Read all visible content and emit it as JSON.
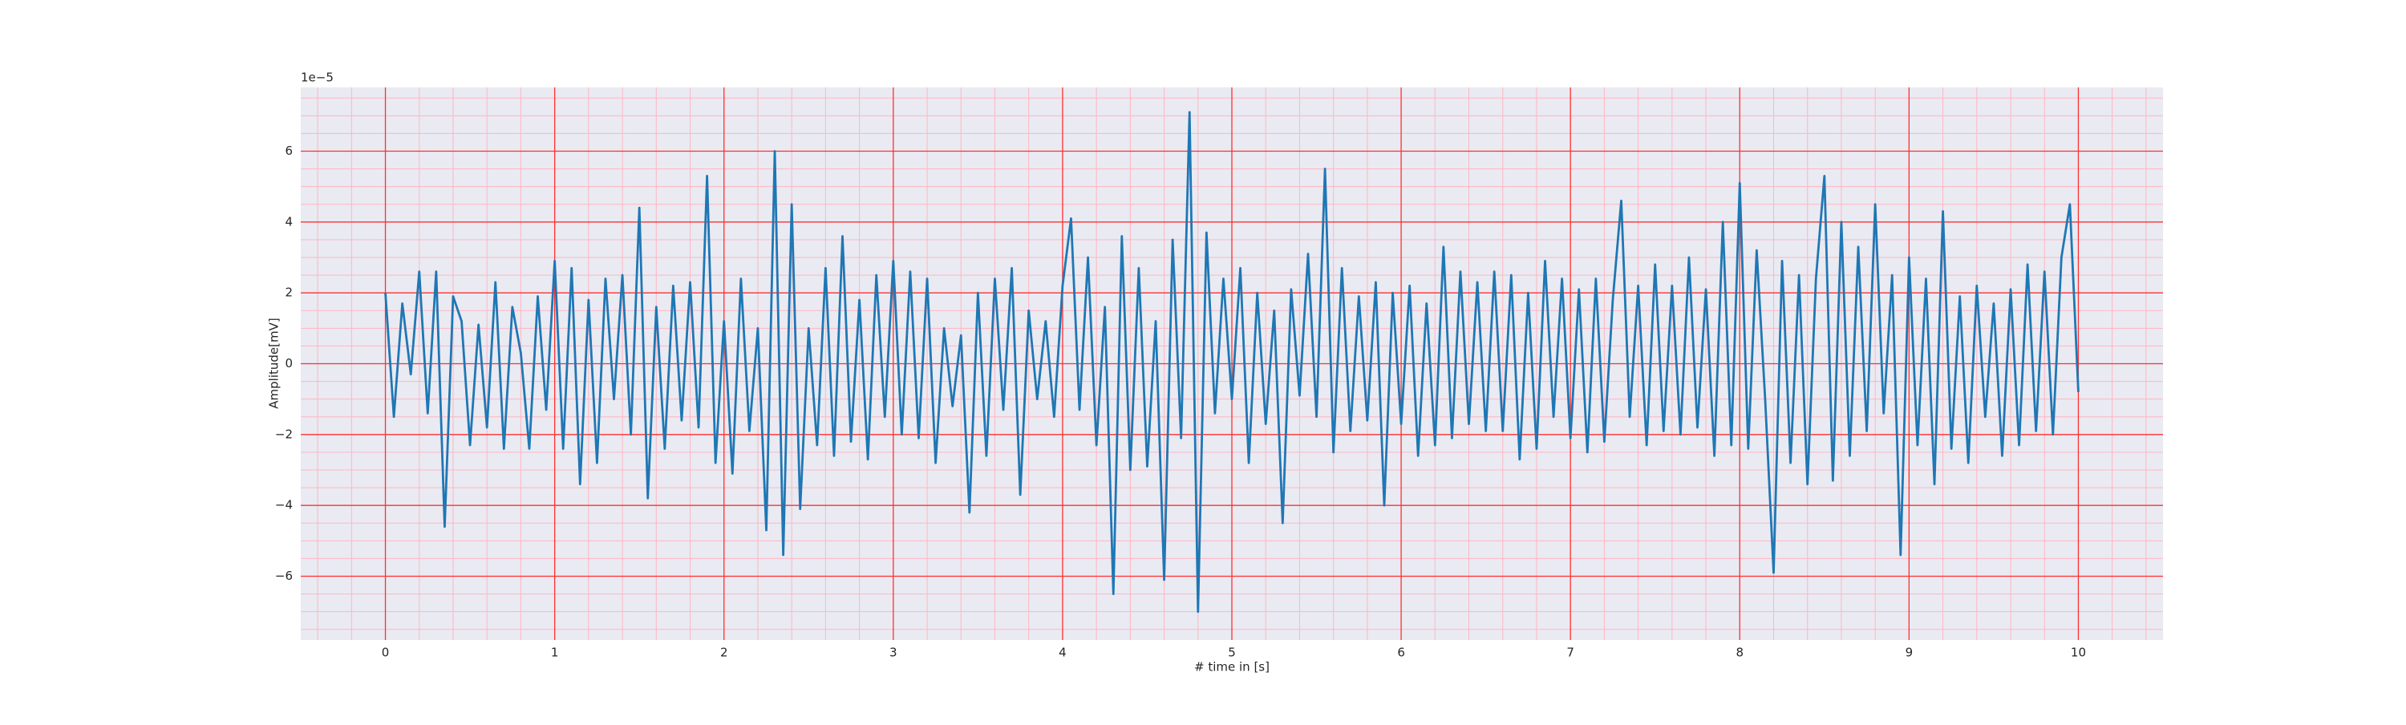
{
  "chart_data": {
    "type": "line",
    "xlabel": "# time in [s]",
    "ylabel": "Amplitude[mV]",
    "offset_text": "1e−5",
    "color": "#1f77b4",
    "grid": true,
    "grid_color": "#ff3030",
    "minor_grid_color": "#ffb6c1",
    "background": "#eaeaf2",
    "xlim": [
      -0.5,
      10.5
    ],
    "ylim": [
      -7.8,
      7.8
    ],
    "xticks": [
      0,
      1,
      2,
      3,
      4,
      5,
      6,
      7,
      8,
      9,
      10
    ],
    "yticks": [
      {
        "value": -6,
        "label": "−6"
      },
      {
        "value": -4,
        "label": "−4"
      },
      {
        "value": -2,
        "label": "−2"
      },
      0,
      2,
      4,
      6
    ],
    "xminorticks": [
      -0.4,
      -0.2,
      0.2,
      0.4,
      0.6,
      0.8,
      1.2,
      1.4,
      1.6,
      1.8,
      2.2,
      2.4,
      2.6,
      2.8,
      3.2,
      3.4,
      3.6,
      3.8,
      4.2,
      4.4,
      4.6,
      4.8,
      5.2,
      5.4,
      5.6,
      5.8,
      6.2,
      6.4,
      6.6,
      6.8,
      7.2,
      7.4,
      7.6,
      7.8,
      8.2,
      8.4,
      8.6,
      8.8,
      9.2,
      9.4,
      9.6,
      9.8,
      10.2,
      10.4
    ],
    "yminorticks": [
      -7.5,
      -7,
      -6.5,
      -5.5,
      -5,
      -4.5,
      -3.5,
      -3,
      -2.5,
      -1.5,
      -1,
      -0.5,
      0.5,
      1,
      1.5,
      2.5,
      3,
      3.5,
      4.5,
      5,
      5.5,
      6.5,
      7,
      7.5
    ],
    "x": [
      0,
      0.05,
      0.1,
      0.15,
      0.2,
      0.25,
      0.3,
      0.35,
      0.4,
      0.45,
      0.5,
      0.55,
      0.6,
      0.65,
      0.7,
      0.75,
      0.8,
      0.85,
      0.9,
      0.95,
      1,
      1.05,
      1.1,
      1.15,
      1.2,
      1.25,
      1.3,
      1.35,
      1.4,
      1.45,
      1.5,
      1.55,
      1.6,
      1.65,
      1.7,
      1.75,
      1.8,
      1.85,
      1.9,
      1.95,
      2,
      2.05,
      2.1,
      2.15,
      2.2,
      2.25,
      2.3,
      2.35,
      2.4,
      2.45,
      2.5,
      2.55,
      2.6,
      2.65,
      2.7,
      2.75,
      2.8,
      2.85,
      2.9,
      2.95,
      3,
      3.05,
      3.1,
      3.15,
      3.2,
      3.25,
      3.3,
      3.35,
      3.4,
      3.45,
      3.5,
      3.55,
      3.6,
      3.65,
      3.7,
      3.75,
      3.8,
      3.85,
      3.9,
      3.95,
      4,
      4.05,
      4.1,
      4.15,
      4.2,
      4.25,
      4.3,
      4.35,
      4.4,
      4.45,
      4.5,
      4.55,
      4.6,
      4.65,
      4.7,
      4.75,
      4.8,
      4.85,
      4.9,
      4.95,
      5,
      5.05,
      5.1,
      5.15,
      5.2,
      5.25,
      5.3,
      5.35,
      5.4,
      5.45,
      5.5,
      5.55,
      5.6,
      5.65,
      5.7,
      5.75,
      5.8,
      5.85,
      5.9,
      5.95,
      6,
      6.05,
      6.1,
      6.15,
      6.2,
      6.25,
      6.3,
      6.35,
      6.4,
      6.45,
      6.5,
      6.55,
      6.6,
      6.65,
      6.7,
      6.75,
      6.8,
      6.85,
      6.9,
      6.95,
      7,
      7.05,
      7.1,
      7.15,
      7.2,
      7.25,
      7.3,
      7.35,
      7.4,
      7.45,
      7.5,
      7.55,
      7.6,
      7.65,
      7.7,
      7.75,
      7.8,
      7.85,
      7.9,
      7.95,
      8,
      8.05,
      8.1,
      8.15,
      8.2,
      8.25,
      8.3,
      8.35,
      8.4,
      8.45,
      8.5,
      8.55,
      8.6,
      8.65,
      8.7,
      8.75,
      8.8,
      8.85,
      8.9,
      8.95,
      9,
      9.05,
      9.1,
      9.15,
      9.2,
      9.25,
      9.3,
      9.35,
      9.4,
      9.45,
      9.5,
      9.55,
      9.6,
      9.65,
      9.7,
      9.75,
      9.8,
      9.85,
      9.9,
      9.95,
      10
    ],
    "values": [
      2.0,
      -1.5,
      1.7,
      -0.3,
      2.6,
      -1.4,
      2.6,
      -4.6,
      1.9,
      1.2,
      -2.3,
      1.1,
      -1.8,
      2.3,
      -2.4,
      1.6,
      0.3,
      -2.4,
      1.9,
      -1.3,
      2.9,
      -2.4,
      2.7,
      -3.4,
      1.8,
      -2.8,
      2.4,
      -1.0,
      2.5,
      -2.0,
      4.4,
      -3.8,
      1.6,
      -2.4,
      2.2,
      -1.6,
      2.3,
      -1.8,
      5.3,
      -2.8,
      1.2,
      -3.1,
      2.4,
      -1.9,
      1.0,
      -4.7,
      6.0,
      -5.4,
      4.5,
      -4.1,
      1.0,
      -2.3,
      2.7,
      -2.6,
      3.6,
      -2.2,
      1.8,
      -2.7,
      2.5,
      -1.5,
      2.9,
      -2.0,
      2.6,
      -2.1,
      2.4,
      -2.8,
      1.0,
      -1.2,
      0.8,
      -4.2,
      2.0,
      -2.6,
      2.4,
      -1.3,
      2.7,
      -3.7,
      1.5,
      -1.0,
      1.2,
      -1.5,
      2.2,
      4.1,
      -1.3,
      3.0,
      -2.3,
      1.6,
      -6.5,
      3.6,
      -3.0,
      2.7,
      -2.9,
      1.2,
      -6.1,
      3.5,
      -2.1,
      7.1,
      -7.0,
      3.7,
      -1.4,
      2.4,
      -1.0,
      2.7,
      -2.8,
      2.0,
      -1.7,
      1.5,
      -4.5,
      2.1,
      -0.9,
      3.1,
      -1.5,
      5.5,
      -2.5,
      2.7,
      -1.9,
      1.9,
      -1.6,
      2.3,
      -4.0,
      2.0,
      -1.7,
      2.2,
      -2.6,
      1.7,
      -2.3,
      3.3,
      -2.1,
      2.6,
      -1.7,
      2.3,
      -1.9,
      2.6,
      -1.9,
      2.5,
      -2.7,
      2.0,
      -2.4,
      2.9,
      -1.5,
      2.4,
      -2.1,
      2.1,
      -2.5,
      2.4,
      -2.2,
      1.8,
      4.6,
      -1.5,
      2.2,
      -2.3,
      2.8,
      -1.9,
      2.2,
      -2.0,
      3.0,
      -1.8,
      2.1,
      -2.6,
      4.0,
      -2.3,
      5.1,
      -2.4,
      3.2,
      -1.0,
      -5.9,
      2.9,
      -2.8,
      2.5,
      -3.4,
      2.4,
      5.3,
      -3.3,
      4.0,
      -2.6,
      3.3,
      -1.9,
      4.5,
      -1.4,
      2.5,
      -5.4,
      3.0,
      -2.3,
      2.4,
      -3.4,
      4.3,
      -2.4,
      1.9,
      -2.8,
      2.2,
      -1.5,
      1.7,
      -2.6,
      2.1,
      -2.3,
      2.8,
      -1.9,
      2.6,
      -2.0,
      3.0,
      4.5,
      -0.8
    ]
  }
}
